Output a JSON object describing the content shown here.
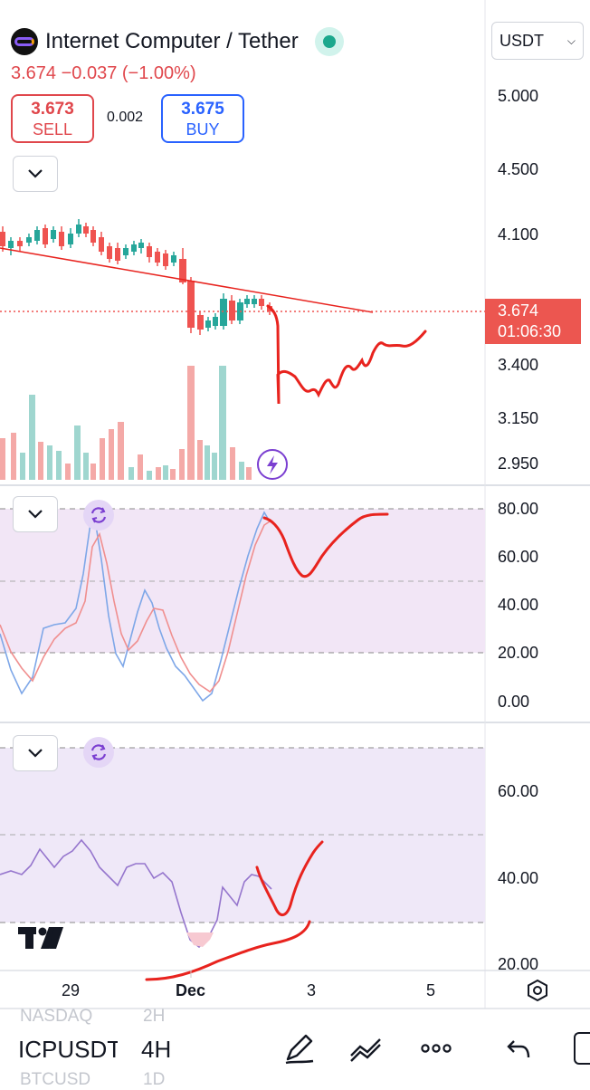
{
  "header": {
    "symbol_title": "Internet Computer / Tether",
    "price_change": "3.674  −0.037 (−1.00%)",
    "sell_value": "3.673",
    "sell_label": "SELL",
    "buy_value": "3.675",
    "buy_label": "BUY",
    "spread": "0.002",
    "currency": "USDT"
  },
  "price_axis": [
    "5.000",
    "4.500",
    "4.100",
    "3.400",
    "3.150",
    "2.950"
  ],
  "last_price_tag": {
    "price": "3.674",
    "countdown": "01:06:30"
  },
  "stoch_axis": [
    "80.00",
    "60.00",
    "40.00",
    "20.00",
    "0.00"
  ],
  "rsi_axis": [
    "60.00",
    "40.00",
    "20.00"
  ],
  "time_axis": [
    "29",
    "Dec",
    "3",
    "5"
  ],
  "bottom_bar": {
    "ghost_top_symbol": "NASDAQ",
    "ghost_top_interval": "2H",
    "symbol": "ICPUSDT",
    "interval": "4H",
    "ghost_bottom_symbol": "BTCUSD",
    "ghost_bottom_interval": "1D"
  },
  "colors": {
    "up": "#26a69a",
    "down": "#ef5350",
    "annotation": "#e8231e",
    "stoch_k": "#7ea7e8",
    "stoch_d": "#f08f8f",
    "rsi": "#9575cd"
  },
  "icons": [
    "chevron-down-icon",
    "refresh-icon",
    "lightning-icon",
    "settings-hexagon-icon",
    "pen-icon",
    "drawing-tools-icon",
    "more-icon",
    "undo-icon"
  ]
}
